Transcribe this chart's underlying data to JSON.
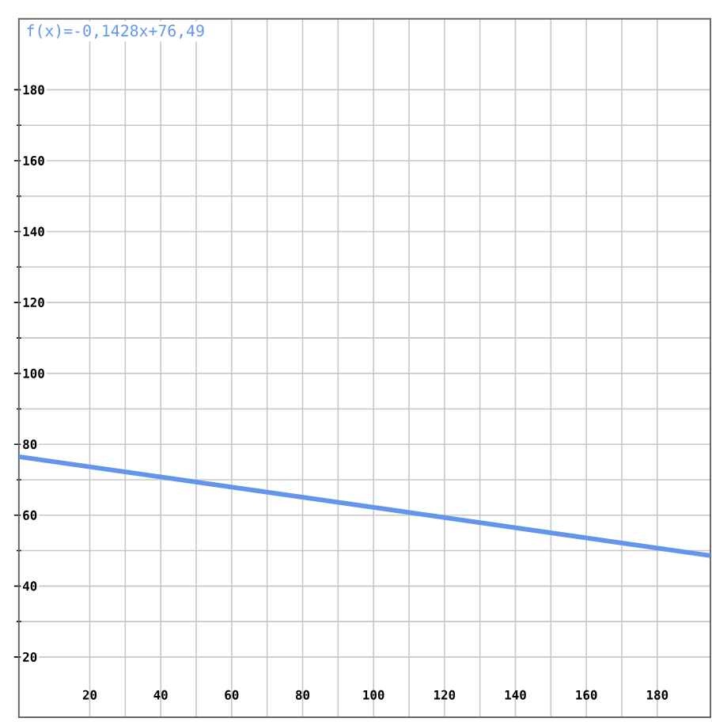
{
  "chart_data": {
    "type": "line",
    "xlim": [
      0,
      195
    ],
    "ylim": [
      3,
      200
    ],
    "xticks": [
      20,
      40,
      60,
      80,
      100,
      120,
      140,
      160,
      180
    ],
    "yticks": [
      20,
      40,
      60,
      80,
      100,
      120,
      140,
      160,
      180
    ],
    "grid": true,
    "series": [
      {
        "name": "f(x)=-0,1428x+76,49",
        "color": "#6495ed",
        "x": [
          0,
          195
        ],
        "values": [
          76.5,
          48.6
        ]
      }
    ]
  }
}
